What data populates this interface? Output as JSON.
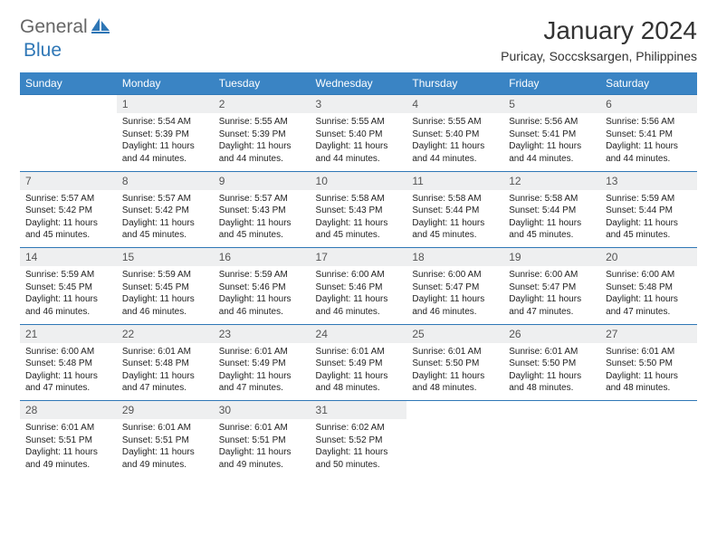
{
  "logo": {
    "text1": "General",
    "text2": "Blue"
  },
  "title": "January 2024",
  "subtitle": "Puricay, Soccsksargen, Philippines",
  "colors": {
    "header_bg": "#3a84c4",
    "header_text": "#ffffff",
    "daynum_bg": "#eeeff0",
    "row_border": "#2f77b6",
    "logo_blue": "#2f77b6",
    "logo_gray": "#666666",
    "page_bg": "#ffffff"
  },
  "weekdays": [
    "Sunday",
    "Monday",
    "Tuesday",
    "Wednesday",
    "Thursday",
    "Friday",
    "Saturday"
  ],
  "weeks": [
    {
      "days": [
        {
          "num": "",
          "sunrise": "",
          "sunset": "",
          "daylight": ""
        },
        {
          "num": "1",
          "sunrise": "Sunrise: 5:54 AM",
          "sunset": "Sunset: 5:39 PM",
          "daylight": "Daylight: 11 hours and 44 minutes."
        },
        {
          "num": "2",
          "sunrise": "Sunrise: 5:55 AM",
          "sunset": "Sunset: 5:39 PM",
          "daylight": "Daylight: 11 hours and 44 minutes."
        },
        {
          "num": "3",
          "sunrise": "Sunrise: 5:55 AM",
          "sunset": "Sunset: 5:40 PM",
          "daylight": "Daylight: 11 hours and 44 minutes."
        },
        {
          "num": "4",
          "sunrise": "Sunrise: 5:55 AM",
          "sunset": "Sunset: 5:40 PM",
          "daylight": "Daylight: 11 hours and 44 minutes."
        },
        {
          "num": "5",
          "sunrise": "Sunrise: 5:56 AM",
          "sunset": "Sunset: 5:41 PM",
          "daylight": "Daylight: 11 hours and 44 minutes."
        },
        {
          "num": "6",
          "sunrise": "Sunrise: 5:56 AM",
          "sunset": "Sunset: 5:41 PM",
          "daylight": "Daylight: 11 hours and 44 minutes."
        }
      ]
    },
    {
      "days": [
        {
          "num": "7",
          "sunrise": "Sunrise: 5:57 AM",
          "sunset": "Sunset: 5:42 PM",
          "daylight": "Daylight: 11 hours and 45 minutes."
        },
        {
          "num": "8",
          "sunrise": "Sunrise: 5:57 AM",
          "sunset": "Sunset: 5:42 PM",
          "daylight": "Daylight: 11 hours and 45 minutes."
        },
        {
          "num": "9",
          "sunrise": "Sunrise: 5:57 AM",
          "sunset": "Sunset: 5:43 PM",
          "daylight": "Daylight: 11 hours and 45 minutes."
        },
        {
          "num": "10",
          "sunrise": "Sunrise: 5:58 AM",
          "sunset": "Sunset: 5:43 PM",
          "daylight": "Daylight: 11 hours and 45 minutes."
        },
        {
          "num": "11",
          "sunrise": "Sunrise: 5:58 AM",
          "sunset": "Sunset: 5:44 PM",
          "daylight": "Daylight: 11 hours and 45 minutes."
        },
        {
          "num": "12",
          "sunrise": "Sunrise: 5:58 AM",
          "sunset": "Sunset: 5:44 PM",
          "daylight": "Daylight: 11 hours and 45 minutes."
        },
        {
          "num": "13",
          "sunrise": "Sunrise: 5:59 AM",
          "sunset": "Sunset: 5:44 PM",
          "daylight": "Daylight: 11 hours and 45 minutes."
        }
      ]
    },
    {
      "days": [
        {
          "num": "14",
          "sunrise": "Sunrise: 5:59 AM",
          "sunset": "Sunset: 5:45 PM",
          "daylight": "Daylight: 11 hours and 46 minutes."
        },
        {
          "num": "15",
          "sunrise": "Sunrise: 5:59 AM",
          "sunset": "Sunset: 5:45 PM",
          "daylight": "Daylight: 11 hours and 46 minutes."
        },
        {
          "num": "16",
          "sunrise": "Sunrise: 5:59 AM",
          "sunset": "Sunset: 5:46 PM",
          "daylight": "Daylight: 11 hours and 46 minutes."
        },
        {
          "num": "17",
          "sunrise": "Sunrise: 6:00 AM",
          "sunset": "Sunset: 5:46 PM",
          "daylight": "Daylight: 11 hours and 46 minutes."
        },
        {
          "num": "18",
          "sunrise": "Sunrise: 6:00 AM",
          "sunset": "Sunset: 5:47 PM",
          "daylight": "Daylight: 11 hours and 46 minutes."
        },
        {
          "num": "19",
          "sunrise": "Sunrise: 6:00 AM",
          "sunset": "Sunset: 5:47 PM",
          "daylight": "Daylight: 11 hours and 47 minutes."
        },
        {
          "num": "20",
          "sunrise": "Sunrise: 6:00 AM",
          "sunset": "Sunset: 5:48 PM",
          "daylight": "Daylight: 11 hours and 47 minutes."
        }
      ]
    },
    {
      "days": [
        {
          "num": "21",
          "sunrise": "Sunrise: 6:00 AM",
          "sunset": "Sunset: 5:48 PM",
          "daylight": "Daylight: 11 hours and 47 minutes."
        },
        {
          "num": "22",
          "sunrise": "Sunrise: 6:01 AM",
          "sunset": "Sunset: 5:48 PM",
          "daylight": "Daylight: 11 hours and 47 minutes."
        },
        {
          "num": "23",
          "sunrise": "Sunrise: 6:01 AM",
          "sunset": "Sunset: 5:49 PM",
          "daylight": "Daylight: 11 hours and 47 minutes."
        },
        {
          "num": "24",
          "sunrise": "Sunrise: 6:01 AM",
          "sunset": "Sunset: 5:49 PM",
          "daylight": "Daylight: 11 hours and 48 minutes."
        },
        {
          "num": "25",
          "sunrise": "Sunrise: 6:01 AM",
          "sunset": "Sunset: 5:50 PM",
          "daylight": "Daylight: 11 hours and 48 minutes."
        },
        {
          "num": "26",
          "sunrise": "Sunrise: 6:01 AM",
          "sunset": "Sunset: 5:50 PM",
          "daylight": "Daylight: 11 hours and 48 minutes."
        },
        {
          "num": "27",
          "sunrise": "Sunrise: 6:01 AM",
          "sunset": "Sunset: 5:50 PM",
          "daylight": "Daylight: 11 hours and 48 minutes."
        }
      ]
    },
    {
      "days": [
        {
          "num": "28",
          "sunrise": "Sunrise: 6:01 AM",
          "sunset": "Sunset: 5:51 PM",
          "daylight": "Daylight: 11 hours and 49 minutes."
        },
        {
          "num": "29",
          "sunrise": "Sunrise: 6:01 AM",
          "sunset": "Sunset: 5:51 PM",
          "daylight": "Daylight: 11 hours and 49 minutes."
        },
        {
          "num": "30",
          "sunrise": "Sunrise: 6:01 AM",
          "sunset": "Sunset: 5:51 PM",
          "daylight": "Daylight: 11 hours and 49 minutes."
        },
        {
          "num": "31",
          "sunrise": "Sunrise: 6:02 AM",
          "sunset": "Sunset: 5:52 PM",
          "daylight": "Daylight: 11 hours and 50 minutes."
        },
        {
          "num": "",
          "sunrise": "",
          "sunset": "",
          "daylight": ""
        },
        {
          "num": "",
          "sunrise": "",
          "sunset": "",
          "daylight": ""
        },
        {
          "num": "",
          "sunrise": "",
          "sunset": "",
          "daylight": ""
        }
      ]
    }
  ]
}
